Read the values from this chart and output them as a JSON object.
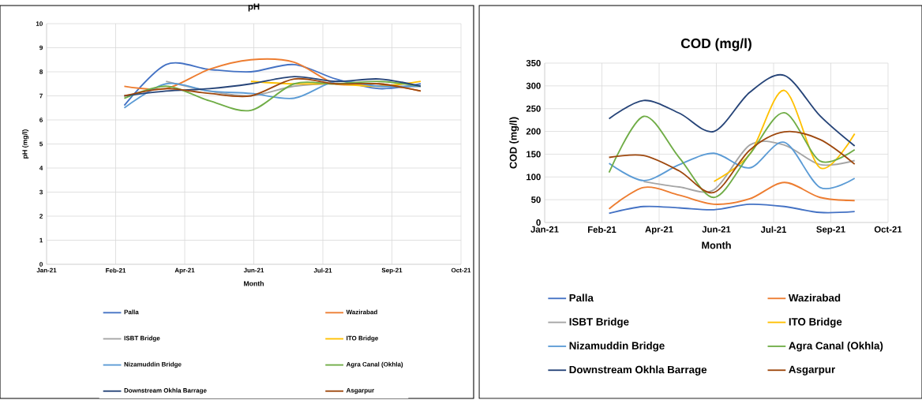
{
  "chart_data": [
    {
      "type": "line",
      "title": "pH",
      "xlabel": "Month",
      "ylabel": "pH (mg/l)",
      "x": [
        "2021-03-05",
        "2021-04-03",
        "2021-05-03",
        "2021-06-01",
        "2021-07-01",
        "2021-07-30",
        "2021-08-29",
        "2021-09-27"
      ],
      "xlim": [
        "2021-01-10",
        "2021-10-25"
      ],
      "xticks": [
        {
          "value": "2021-01-10",
          "label": "Jan-21"
        },
        {
          "value": "2021-02-27",
          "label": "Feb-21"
        },
        {
          "value": "2021-04-16",
          "label": "Apr-21"
        },
        {
          "value": "2021-06-03",
          "label": "Jun-21"
        },
        {
          "value": "2021-07-21",
          "label": "Jul-21"
        },
        {
          "value": "2021-09-07",
          "label": "Sep-21"
        },
        {
          "value": "2021-10-25",
          "label": "Oct-21"
        }
      ],
      "ylim": [
        0,
        10
      ],
      "yticks": [
        0,
        1,
        2,
        3,
        4,
        5,
        6,
        7,
        8,
        9,
        10
      ],
      "grid": true,
      "legend": "bottom",
      "series": [
        {
          "name": "Palla",
          "color": "#4472c4",
          "values": [
            6.6,
            8.3,
            8.1,
            8.0,
            8.3,
            7.7,
            7.3,
            7.5
          ]
        },
        {
          "name": "Wazirabad",
          "color": "#ed7d31",
          "values": [
            7.4,
            7.3,
            8.1,
            8.5,
            8.4,
            7.5,
            7.5,
            7.2
          ]
        },
        {
          "name": "ISBT Bridge",
          "color": "#a5a5a5",
          "values": [
            null,
            7.6,
            7.2,
            7.0,
            7.4,
            7.5,
            7.4,
            7.4
          ]
        },
        {
          "name": "ITO Bridge",
          "color": "#ffc000",
          "values": [
            null,
            null,
            null,
            7.6,
            7.5,
            7.5,
            7.4,
            7.6
          ]
        },
        {
          "name": "Nizamuddin Bridge",
          "color": "#5b9bd5",
          "values": [
            6.5,
            7.5,
            7.2,
            7.1,
            6.9,
            7.6,
            7.4,
            7.4
          ]
        },
        {
          "name": "Agra Canal (Okhla)",
          "color": "#70ad47",
          "values": [
            6.9,
            7.4,
            6.8,
            6.4,
            7.5,
            7.5,
            7.6,
            7.4
          ]
        },
        {
          "name": "Downstream Okhla Barrage",
          "color": "#264478",
          "values": [
            7.0,
            7.2,
            7.3,
            7.5,
            7.8,
            7.6,
            7.7,
            7.4
          ]
        },
        {
          "name": "Asgarpur",
          "color": "#9e480e",
          "values": [
            7.0,
            7.3,
            7.1,
            7.0,
            7.7,
            7.5,
            7.5,
            7.2
          ]
        }
      ]
    },
    {
      "type": "line",
      "title": "COD (mg/l)",
      "xlabel": "Month",
      "ylabel": "COD (mg/l)",
      "x": [
        "2021-03-05",
        "2021-04-03",
        "2021-05-03",
        "2021-06-01",
        "2021-07-01",
        "2021-07-30",
        "2021-08-29",
        "2021-09-27"
      ],
      "xlim": [
        "2021-01-10",
        "2021-10-25"
      ],
      "xticks": [
        {
          "value": "2021-01-10",
          "label": "Jan-21"
        },
        {
          "value": "2021-02-27",
          "label": "Feb-21"
        },
        {
          "value": "2021-04-16",
          "label": "Apr-21"
        },
        {
          "value": "2021-06-03",
          "label": "Jun-21"
        },
        {
          "value": "2021-07-21",
          "label": "Jul-21"
        },
        {
          "value": "2021-09-07",
          "label": "Sep-21"
        },
        {
          "value": "2021-10-25",
          "label": "Oct-21"
        }
      ],
      "ylim": [
        0,
        350
      ],
      "yticks": [
        0,
        50,
        100,
        150,
        200,
        250,
        300,
        350
      ],
      "grid": true,
      "legend": "bottom",
      "series": [
        {
          "name": "Palla",
          "color": "#4472c4",
          "values": [
            20,
            35,
            32,
            28,
            40,
            35,
            22,
            24
          ]
        },
        {
          "name": "Wazirabad",
          "color": "#ed7d31",
          "values": [
            30,
            77,
            60,
            40,
            52,
            88,
            55,
            48
          ]
        },
        {
          "name": "ISBT Bridge",
          "color": "#a5a5a5",
          "values": [
            null,
            90,
            78,
            72,
            170,
            170,
            127,
            136
          ]
        },
        {
          "name": "ITO Bridge",
          "color": "#ffc000",
          "values": [
            null,
            null,
            null,
            90,
            150,
            290,
            120,
            195
          ]
        },
        {
          "name": "Nizamuddin Bridge",
          "color": "#5b9bd5",
          "values": [
            130,
            92,
            127,
            152,
            120,
            176,
            77,
            97
          ]
        },
        {
          "name": "Agra Canal (Okhla)",
          "color": "#70ad47",
          "values": [
            110,
            233,
            142,
            55,
            150,
            241,
            135,
            160
          ]
        },
        {
          "name": "Downstream Okhla Barrage",
          "color": "#264478",
          "values": [
            228,
            268,
            240,
            200,
            286,
            323,
            234,
            168
          ]
        },
        {
          "name": "Asgarpur",
          "color": "#9e480e",
          "values": [
            143,
            147,
            113,
            66,
            159,
            199,
            182,
            128
          ]
        }
      ]
    }
  ]
}
